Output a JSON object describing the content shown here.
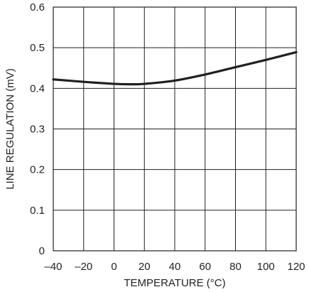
{
  "chart_data": {
    "type": "line",
    "title": "",
    "xlabel": "TEMPERATURE (°C)",
    "ylabel": "LINE REGULATION (mV)",
    "xlim": [
      -40,
      120
    ],
    "ylim": [
      0,
      0.6
    ],
    "grid": true,
    "legend": "none",
    "x_ticks": [
      -40,
      -20,
      0,
      20,
      40,
      60,
      80,
      100,
      120
    ],
    "x_tick_labels": [
      "–40",
      "–20",
      "0",
      "20",
      "40",
      "60",
      "80",
      "100",
      "120"
    ],
    "y_ticks": [
      0,
      0.1,
      0.2,
      0.3,
      0.4,
      0.5,
      0.6
    ],
    "y_tick_labels": [
      "0",
      "0.1",
      "0.2",
      "0.3",
      "0.4",
      "0.5",
      "0.6"
    ],
    "series": [
      {
        "x": [
          -40,
          -20,
          0,
          10,
          20,
          40,
          60,
          80,
          100,
          120
        ],
        "y": [
          0.422,
          0.416,
          0.411,
          0.41,
          0.411,
          0.419,
          0.434,
          0.452,
          0.47,
          0.489
        ],
        "color": "#231f20"
      }
    ],
    "colors": {
      "grid": "#231f20",
      "line": "#231f20",
      "text": "#231f20"
    }
  }
}
